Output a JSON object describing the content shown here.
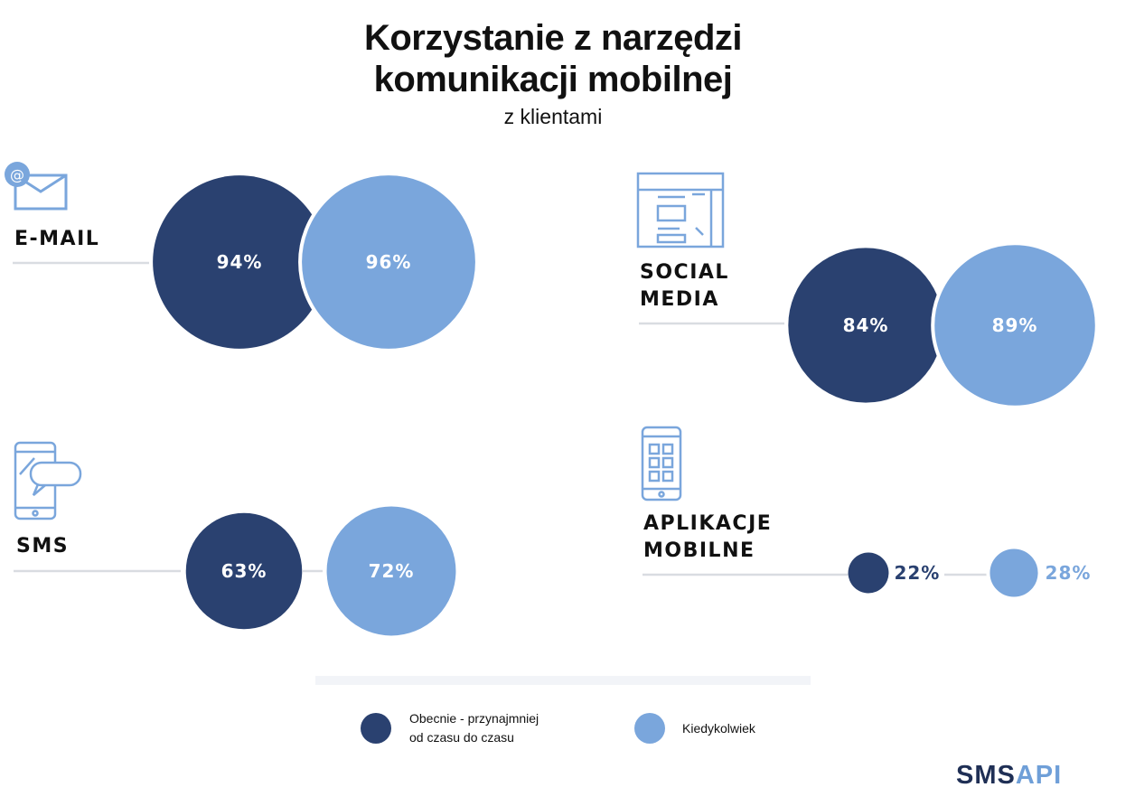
{
  "title_line1": "Korzystanie z narzędzi",
  "title_line2": "komunikacji mobilnej",
  "subtitle": "z klientami",
  "logo": {
    "dark_part": "SMS",
    "light_part": "API"
  },
  "colors": {
    "current": "#2a4170",
    "ever": "#7aa6dc",
    "line": "#d9dce1"
  },
  "chart_data": {
    "type": "bubble",
    "title": "Korzystanie z narzędzi komunikacji mobilnej z klientami",
    "legend": [
      "Obecnie - przynajmniej od czasu do czasu",
      "Kiedykolwiek"
    ],
    "legend_placement": "bottom",
    "unit": "%",
    "categories": [
      {
        "name": "E-MAIL",
        "icon": "email-icon",
        "current": 94,
        "ever": 96
      },
      {
        "name": "SOCIAL MEDIA",
        "icon": "social-media-icon",
        "current": 84,
        "ever": 89
      },
      {
        "name": "SMS",
        "icon": "sms-icon",
        "current": 63,
        "ever": 72
      },
      {
        "name": "APLIKACJE MOBILNE",
        "icon": "mobile-app-icon",
        "current": 22,
        "ever": 28
      }
    ]
  },
  "labels": {
    "email": "E-MAIL",
    "social1": "SOCIAL",
    "social2": "MEDIA",
    "sms": "SMS",
    "apps1": "APLIKACJE",
    "apps2": "MOBILNE"
  },
  "legend": {
    "current1": "Obecnie - przynajmniej",
    "current2": "od czasu do czasu",
    "ever": "Kiedykolwiek"
  }
}
